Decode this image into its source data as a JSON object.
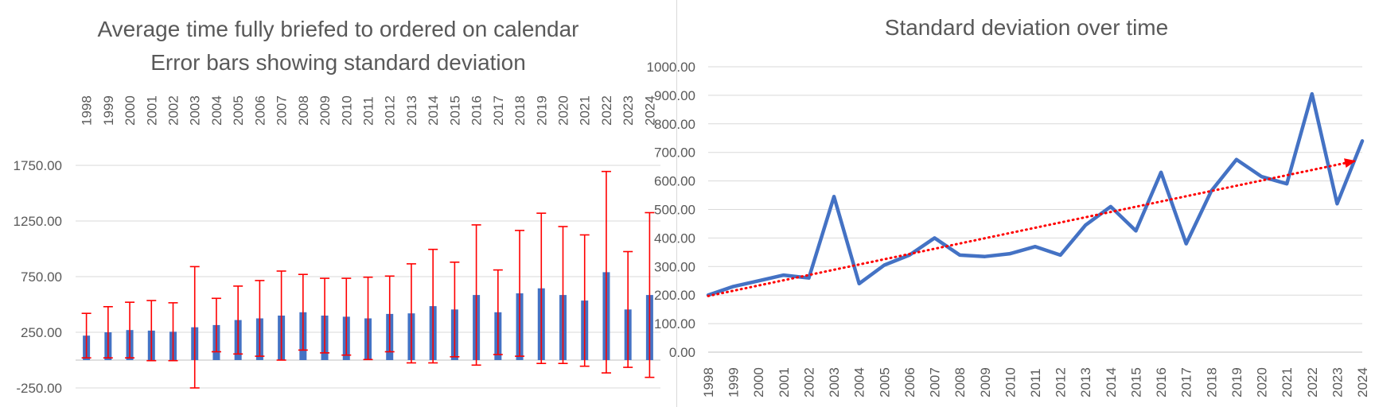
{
  "colors": {
    "bar": "#4472C4",
    "error_bar": "#FF0000",
    "line": "#4472C4",
    "trendline": "#FF0000",
    "gridline": "#D9D9D9",
    "axis": "#BFBFBF",
    "text": "#595959"
  },
  "chart_data": [
    {
      "type": "bar",
      "title": "Average time fully briefed to ordered on calendar",
      "subtitle": "Error bars showing standard deviation",
      "xlabel": "",
      "ylabel": "",
      "categories": [
        "1998",
        "1999",
        "2000",
        "2001",
        "2002",
        "2003",
        "2004",
        "2005",
        "2006",
        "2007",
        "2008",
        "2009",
        "2010",
        "2011",
        "2012",
        "2013",
        "2014",
        "2015",
        "2016",
        "2017",
        "2018",
        "2019",
        "2020",
        "2021",
        "2022",
        "2023",
        "2024"
      ],
      "values": [
        220,
        250,
        270,
        265,
        255,
        295,
        315,
        360,
        375,
        400,
        430,
        400,
        390,
        375,
        415,
        420,
        485,
        455,
        585,
        430,
        600,
        645,
        585,
        535,
        790,
        455,
        585
      ],
      "error": [
        200,
        230,
        250,
        270,
        260,
        545,
        240,
        305,
        340,
        400,
        340,
        335,
        345,
        370,
        340,
        445,
        510,
        425,
        630,
        380,
        565,
        675,
        615,
        590,
        905,
        520,
        740
      ],
      "yticks": [
        "1750.00",
        "1250.00",
        "750.00",
        "250.00",
        "-250.00"
      ],
      "ylim": [
        -250,
        1750
      ],
      "x_axis_position": "top",
      "grid": true,
      "legend": "none"
    },
    {
      "type": "line",
      "title": "Standard deviation over time",
      "xlabel": "",
      "ylabel": "",
      "x": [
        "1998",
        "1999",
        "2000",
        "2001",
        "2002",
        "2003",
        "2004",
        "2005",
        "2006",
        "2007",
        "2008",
        "2009",
        "2010",
        "2011",
        "2012",
        "2013",
        "2014",
        "2015",
        "2016",
        "2017",
        "2018",
        "2019",
        "2020",
        "2021",
        "2022",
        "2023",
        "2024"
      ],
      "values": [
        200,
        230,
        250,
        270,
        260,
        545,
        240,
        305,
        340,
        400,
        340,
        335,
        345,
        370,
        340,
        445,
        510,
        425,
        630,
        380,
        565,
        675,
        615,
        590,
        905,
        520,
        740
      ],
      "trendline": {
        "type": "linear",
        "style": "dotted",
        "arrow": true
      },
      "yticks": [
        "1000.00",
        "900.00",
        "800.00",
        "700.00",
        "600.00",
        "500.00",
        "400.00",
        "300.00",
        "200.00",
        "100.00",
        "0.00"
      ],
      "ylim": [
        0,
        1000
      ],
      "grid": true,
      "legend": "none"
    }
  ]
}
